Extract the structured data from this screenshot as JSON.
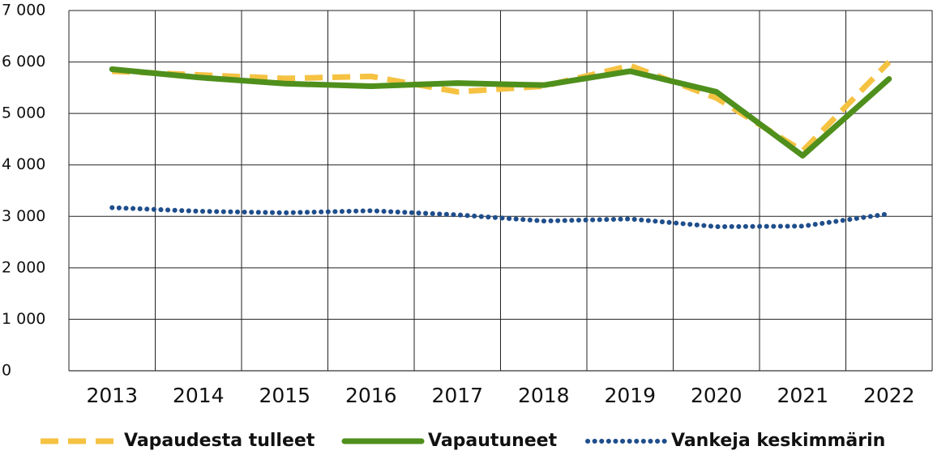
{
  "chart_data": {
    "type": "line",
    "categories": [
      "2013",
      "2014",
      "2015",
      "2016",
      "2017",
      "2018",
      "2019",
      "2020",
      "2021",
      "2022"
    ],
    "series": [
      {
        "name": "Vapaudesta tulleet",
        "color": "#f5c242",
        "values": [
          5820,
          5750,
          5680,
          5720,
          5420,
          5530,
          5930,
          5300,
          4270,
          6000
        ]
      },
      {
        "name": "Vapautuneet",
        "color": "#4f8f1c",
        "values": [
          5860,
          5700,
          5580,
          5530,
          5590,
          5550,
          5820,
          5420,
          4180,
          5670
        ]
      },
      {
        "name": "Vankeja keskimmärin",
        "color": "#1f4e8c",
        "values": [
          3170,
          3100,
          3070,
          3110,
          3030,
          2910,
          2950,
          2800,
          2810,
          3050
        ]
      }
    ],
    "ylim": [
      0,
      7000
    ],
    "yticks": [
      0,
      {
        "value": 1000,
        "label": "1 000"
      },
      {
        "value": 2000,
        "label": "2 000"
      },
      {
        "value": 3000,
        "label": "3 000"
      },
      {
        "value": 4000,
        "label": "4 000"
      },
      {
        "value": 5000,
        "label": "5 000"
      },
      {
        "value": 6000,
        "label": "6 000"
      },
      {
        "value": 7000,
        "label": "7 000"
      }
    ],
    "grid": true,
    "legend": "bottom"
  }
}
